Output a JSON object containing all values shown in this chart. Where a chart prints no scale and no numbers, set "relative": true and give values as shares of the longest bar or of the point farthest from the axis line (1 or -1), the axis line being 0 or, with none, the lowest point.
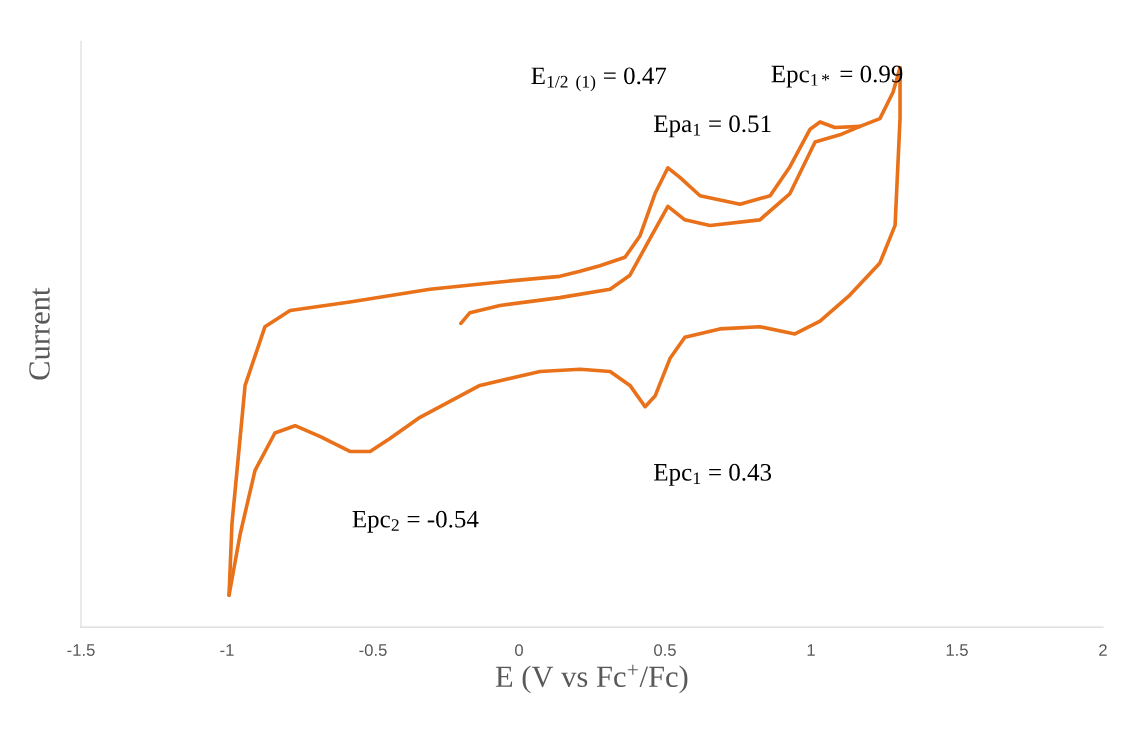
{
  "chart_data": {
    "type": "line",
    "relative": true,
    "xlabel": "E (V vs Fc$^{+}$/Fc)",
    "ylabel": "Current",
    "xlim": [
      -1.5,
      2
    ],
    "xticks": [
      -1.5,
      -1,
      -0.5,
      0,
      0.5,
      1,
      1.5,
      2
    ],
    "grid": false,
    "marker": "none",
    "line_style": "solid",
    "annotations": [
      "E$_{1/2}$ $_{(1)}$ = 0.47",
      "Epa$_{1}$ = 0.51",
      "Epc$_{1*}$ = 0.99",
      "Epc$_{1}$ = 0.43",
      "Epc$_{2}$ = -0.54"
    ],
    "series": [
      {
        "color": "#e8711a",
        "x": [
          -0.199,
          -0.168,
          -0.065,
          0.14,
          0.312,
          0.38,
          0.449,
          0.51,
          0.568,
          0.654,
          0.825,
          0.928,
          1.014,
          1.099,
          1.168
        ],
        "values": [
          0.543,
          0.562,
          0.575,
          0.589,
          0.604,
          0.629,
          0.695,
          0.752,
          0.728,
          0.718,
          0.728,
          0.775,
          0.867,
          0.88,
          0.895
        ]
      },
      {
        "color": "#e8711a",
        "x": [
          -0.993,
          -0.983,
          -0.938,
          -0.87,
          -0.784,
          -0.579,
          -0.305,
          -0.065,
          0.14,
          0.209,
          0.277,
          0.363,
          0.414,
          0.466,
          0.51,
          0.551,
          0.62,
          0.757,
          0.86,
          0.928,
          0.997,
          1.031,
          1.082,
          1.168,
          1.236,
          1.281,
          1.305
        ],
        "values": [
          0.057,
          0.185,
          0.432,
          0.537,
          0.566,
          0.581,
          0.604,
          0.617,
          0.627,
          0.636,
          0.646,
          0.661,
          0.699,
          0.775,
          0.821,
          0.804,
          0.771,
          0.756,
          0.771,
          0.823,
          0.89,
          0.903,
          0.893,
          0.895,
          0.909,
          0.956,
          1.0
        ]
      },
      {
        "color": "#e8711a",
        "x": [
          1.305,
          1.305,
          1.288,
          1.236,
          1.134,
          1.031,
          0.945,
          0.825,
          0.688,
          0.568,
          0.517,
          0.466,
          0.432,
          0.38,
          0.312,
          0.209,
          0.072,
          -0.134,
          -0.339,
          -0.442,
          -0.51,
          -0.579,
          -0.682,
          -0.767,
          -0.836,
          -0.904,
          -0.955,
          -0.993
        ],
        "values": [
          1.0,
          0.909,
          0.718,
          0.651,
          0.594,
          0.547,
          0.524,
          0.537,
          0.533,
          0.518,
          0.48,
          0.413,
          0.394,
          0.432,
          0.457,
          0.461,
          0.457,
          0.432,
          0.375,
          0.337,
          0.314,
          0.314,
          0.341,
          0.36,
          0.347,
          0.28,
          0.166,
          0.057
        ]
      }
    ]
  }
}
